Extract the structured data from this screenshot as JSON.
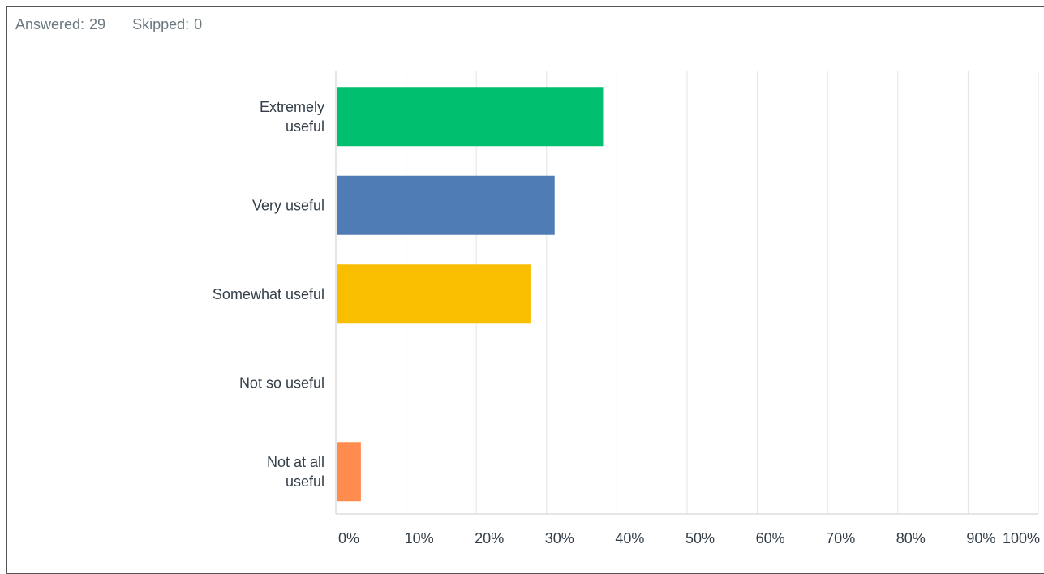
{
  "summary": {
    "answered_label": "Answered:",
    "answered_value": "29",
    "skipped_label": "Skipped:",
    "skipped_value": "0"
  },
  "chart_data": {
    "type": "bar",
    "orientation": "horizontal",
    "categories": [
      [
        "Extremely",
        "useful"
      ],
      [
        "Very useful"
      ],
      [
        "Somewhat useful"
      ],
      [
        "Not so useful"
      ],
      [
        "Not at all",
        "useful"
      ]
    ],
    "values": [
      37.93,
      31.03,
      27.59,
      0,
      3.45
    ],
    "colors": [
      "#00bf6f",
      "#507cb6",
      "#f9be00",
      "#6bc8cd",
      "#ff8b4f"
    ],
    "x_ticks": [
      "0%",
      "10%",
      "20%",
      "30%",
      "40%",
      "50%",
      "60%",
      "70%",
      "80%",
      "90%",
      "100%"
    ],
    "xlim": [
      0,
      100
    ],
    "grid": true,
    "gridline_color": "#e4e4e4",
    "axis_color": "#cccccc",
    "legend": "none"
  }
}
